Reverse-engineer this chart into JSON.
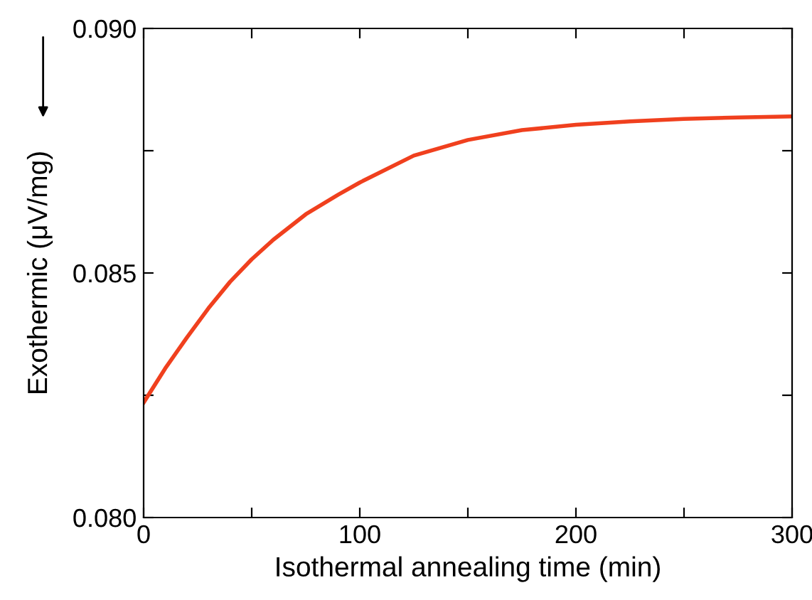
{
  "chart_data": {
    "type": "line",
    "xlabel": "Isothermal annealing time (min)",
    "ylabel": "Exothermic (μV/mg)",
    "x": [
      0,
      10,
      20,
      30,
      40,
      50,
      60,
      75,
      90,
      100,
      125,
      150,
      175,
      200,
      225,
      250,
      275,
      300
    ],
    "series": [
      {
        "color": "#f0401e",
        "values": [
          0.08235,
          0.08305,
          0.08368,
          0.08428,
          0.08482,
          0.08528,
          0.08568,
          0.0862,
          0.0866,
          0.08685,
          0.0874,
          0.08772,
          0.08792,
          0.08803,
          0.0881,
          0.08815,
          0.08818,
          0.0882
        ]
      }
    ],
    "xlim": [
      0,
      300
    ],
    "ylim": [
      0.08,
      0.09
    ],
    "xticks": [
      0,
      {
        "value": 50,
        "label": null
      },
      100,
      {
        "value": 150,
        "label": null
      },
      200,
      {
        "value": 250,
        "label": null
      },
      300
    ],
    "yticks": [
      {
        "value": 0.08,
        "label": "0.080"
      },
      {
        "value": 0.0825,
        "label": null
      },
      {
        "value": 0.085,
        "label": "0.085"
      },
      {
        "value": 0.0875,
        "label": null
      },
      {
        "value": 0.09,
        "label": "0.090"
      }
    ],
    "grid": false,
    "legend": false,
    "marker": "none",
    "line_style": "solid"
  }
}
